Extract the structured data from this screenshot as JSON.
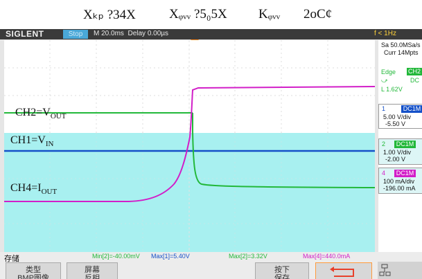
{
  "caption": {
    "items": [
      "Xₖₚ ?34X",
      "Xᵩᵥᵥ ?5₀5X",
      "Kᵩᵥᵥ",
      "2oC¢"
    ]
  },
  "topbar": {
    "brand": "SIGLENT",
    "run_state": "Stop",
    "timebase": "M 20.0ms",
    "delay": "Delay 0.00µs",
    "frequency": "f < 1Hz"
  },
  "channels": {
    "ch2_label": {
      "name": "CH2=V",
      "sub": "OUT"
    },
    "ch1_label": {
      "name": "CH1=V",
      "sub": "IN"
    },
    "ch4_label": {
      "name": "CH4=I",
      "sub": "OUT"
    }
  },
  "right_panel": {
    "sample_rate": "Sa 50.0MSa/s",
    "memory": "Curr 14Mpts",
    "trigger_type": "Edge",
    "trigger_source": "CH2",
    "trigger_coupling": "DC",
    "trigger_level": "L  1.62V",
    "ch1_num": "1",
    "ch1_coupling": "DC1M",
    "ch1_scale": "5.00 V/div",
    "ch1_offset": "-5.50 V",
    "ch2_num": "2",
    "ch2_coupling": "DC1M",
    "ch2_scale": "1.00 V/div",
    "ch2_offset": "-2.00 V",
    "ch4_num": "4",
    "ch4_coupling": "DC1M",
    "ch4_scale": "100 mA/div",
    "ch4_offset": "-196.00 mA"
  },
  "measurements": {
    "menu": "存储",
    "min2": "Min[2]=-40.00mV",
    "max1": "Max[1]=5.40V",
    "max2": "Max[2]=3.32V",
    "max4": "Max[4]=440.0mA"
  },
  "softkeys": {
    "type_title": "类型",
    "type_value": "BMP图像",
    "screen_title": "屏幕",
    "screen_value": "反相",
    "press_title": "按下",
    "press_value": "保存"
  },
  "colors": {
    "ch1": "#1450c8",
    "ch2": "#22b83a",
    "ch4": "#d21ec8",
    "overlay": "#a8f0f0",
    "trigger": "#ff8a1f"
  }
}
